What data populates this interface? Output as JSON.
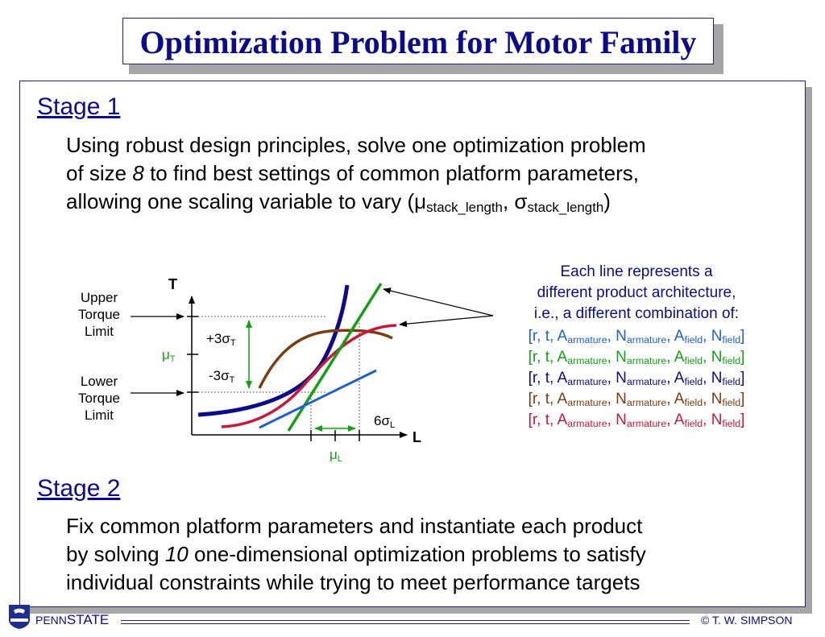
{
  "title": "Optimization Problem for Motor Family",
  "stage1": {
    "heading": "Stage 1",
    "line1": "Using robust design principles, solve one optimization problem",
    "line2_pre": "of size ",
    "line2_num": "8",
    "line2_post": " to find best settings of common platform parameters,",
    "line3_pre": "allowing one scaling variable to vary (",
    "mu": "μ",
    "mu_sub": "stack_length",
    "comma": ", ",
    "sigma": "σ",
    "sigma_sub": "stack_length",
    "line3_post": ")"
  },
  "diagram": {
    "axis_t": "T",
    "axis_l": "L",
    "upper_limit": [
      "Upper",
      "Torque",
      "Limit"
    ],
    "lower_limit": [
      "Lower",
      "Torque",
      "Limit"
    ],
    "mu_t": "μ",
    "mu_t_sub": "T",
    "plus3": "+3σ",
    "plus3_sub": "T",
    "minus3": "-3σ",
    "minus3_sub": "T",
    "six_sigma": "6σ",
    "six_sigma_sub": "L",
    "mu_l": "μ",
    "mu_l_sub": "L",
    "colors": {
      "navy": "#0b0b8c",
      "green": "#13a013",
      "crimson": "#c8183a",
      "brown": "#7a3c10",
      "blue": "#1f5fd0"
    }
  },
  "legend": {
    "line1": "Each line represents a",
    "line2": "different product architecture,",
    "line3": "i.e., a different combination of:",
    "open": "[r, t, A",
    "armature_sub": "armature",
    "n_sep": ", N",
    "a_sep": ", A",
    "field_sub": "field",
    "close": "]"
  },
  "stage2": {
    "heading": "Stage 2",
    "line1": "Fix common platform parameters and instantiate each product",
    "line2_pre": "by solving ",
    "line2_num": "10",
    "line2_post": " one-dimensional optimization problems to satisfy",
    "line3": "individual constraints while trying to meet performance targets"
  },
  "footer": {
    "penn": "PENN",
    "state": "STATE",
    "copyright": "© T. W. SIMPSON"
  }
}
